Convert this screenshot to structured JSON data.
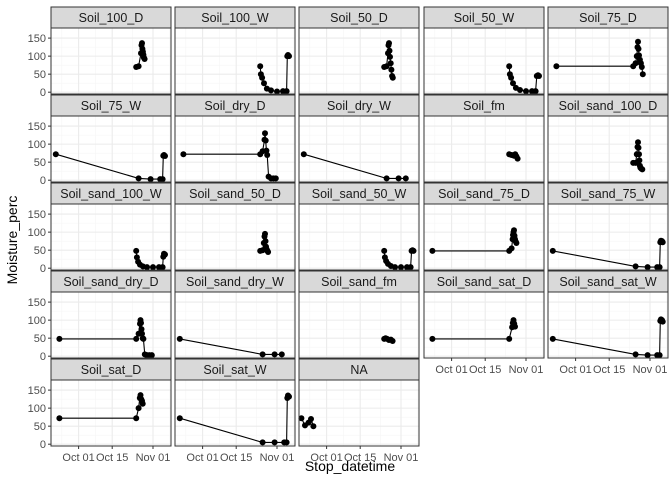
{
  "chart_data": {
    "type": "line",
    "xlabel": "Stop_datetime",
    "ylabel": "Moisture_perc",
    "ylim": [
      -5,
      178
    ],
    "y_ticks": [
      0,
      50,
      100,
      150
    ],
    "x_ticks": [
      "Oct 01",
      "Oct 15",
      "Nov 01"
    ],
    "x_tick_days": [
      0,
      14,
      31
    ],
    "xlim_days": [
      -11.5,
      38.5
    ],
    "grid": true,
    "colors": {
      "panel_bg": "#ffffff",
      "grid_major": "#ebebeb",
      "grid_minor": "#f5f5f5",
      "strip_bg": "#d9d9d9",
      "border": "#333333",
      "series": "#000000"
    },
    "facets": [
      {
        "label": "Soil_100_D",
        "points": [
          [
            24.0,
            70
          ],
          [
            25.0,
            72
          ],
          [
            26.0,
            108
          ],
          [
            26.2,
            130
          ],
          [
            26.4,
            136
          ],
          [
            26.6,
            120
          ],
          [
            26.8,
            112
          ],
          [
            27.0,
            104
          ],
          [
            27.2,
            96
          ],
          [
            27.5,
            92
          ]
        ]
      },
      {
        "label": "Soil_100_W",
        "points": [
          [
            24.0,
            72
          ],
          [
            24.3,
            50
          ],
          [
            24.8,
            40
          ],
          [
            25.6,
            25
          ],
          [
            26.8,
            10
          ],
          [
            28.5,
            5
          ],
          [
            31.0,
            2
          ],
          [
            33.5,
            3
          ],
          [
            35.0,
            3
          ],
          [
            35.3,
            100
          ],
          [
            35.6,
            103
          ],
          [
            36.0,
            100
          ]
        ]
      },
      {
        "label": "Soil_50_D",
        "points": [
          [
            24.0,
            70
          ],
          [
            25.0,
            72
          ],
          [
            25.6,
            108
          ],
          [
            25.8,
            130
          ],
          [
            26.0,
            136
          ],
          [
            26.2,
            115
          ],
          [
            26.4,
            98
          ],
          [
            26.7,
            80
          ],
          [
            27.0,
            62
          ],
          [
            27.3,
            45
          ],
          [
            27.6,
            40
          ]
        ]
      },
      {
        "label": "Soil_50_W",
        "points": [
          [
            24.0,
            72
          ],
          [
            24.3,
            50
          ],
          [
            24.8,
            40
          ],
          [
            25.6,
            25
          ],
          [
            26.8,
            12
          ],
          [
            28.5,
            6
          ],
          [
            31.0,
            3
          ],
          [
            33.5,
            3
          ],
          [
            35.0,
            3
          ],
          [
            35.5,
            45
          ],
          [
            36.0,
            47
          ],
          [
            36.4,
            45
          ]
        ]
      },
      {
        "label": "Soil_75_D",
        "points": [
          [
            -8.0,
            72
          ],
          [
            24.0,
            72
          ],
          [
            25.0,
            80
          ],
          [
            25.5,
            100
          ],
          [
            25.8,
            125
          ],
          [
            26.0,
            140
          ],
          [
            26.2,
            120
          ],
          [
            26.4,
            102
          ],
          [
            26.8,
            90
          ],
          [
            27.2,
            80
          ],
          [
            27.6,
            70
          ],
          [
            28.0,
            50
          ]
        ]
      },
      {
        "label": "Soil_75_W",
        "points": [
          [
            -9.5,
            72
          ],
          [
            25.0,
            5
          ],
          [
            30.0,
            3
          ],
          [
            34.0,
            3
          ],
          [
            35.0,
            3
          ],
          [
            35.3,
            68
          ],
          [
            35.6,
            70
          ],
          [
            36.0,
            67
          ]
        ]
      },
      {
        "label": "Soil_dry_D",
        "points": [
          [
            -8.0,
            72
          ],
          [
            24.0,
            72
          ],
          [
            25.0,
            80
          ],
          [
            25.8,
            112
          ],
          [
            26.0,
            130
          ],
          [
            26.3,
            110
          ],
          [
            26.6,
            82
          ],
          [
            26.9,
            70
          ],
          [
            27.5,
            10
          ],
          [
            28.5,
            5
          ],
          [
            29.5,
            5
          ],
          [
            30.5,
            5
          ]
        ]
      },
      {
        "label": "Soil_dry_W",
        "points": [
          [
            -9.5,
            72
          ],
          [
            25.0,
            5
          ],
          [
            30.0,
            5
          ],
          [
            33.0,
            5
          ]
        ]
      },
      {
        "label": "Soil_fm",
        "points": [
          [
            24.0,
            72
          ],
          [
            25.0,
            70
          ],
          [
            26.0,
            68
          ],
          [
            26.5,
            72
          ],
          [
            27.0,
            66
          ],
          [
            27.5,
            60
          ]
        ]
      },
      {
        "label": "Soil_sand_100_D",
        "points": [
          [
            24.0,
            48
          ],
          [
            25.0,
            48
          ],
          [
            25.5,
            72
          ],
          [
            25.8,
            92
          ],
          [
            26.0,
            105
          ],
          [
            26.2,
            90
          ],
          [
            26.4,
            72
          ],
          [
            26.6,
            55
          ],
          [
            26.8,
            40
          ],
          [
            27.0,
            35
          ],
          [
            27.4,
            32
          ],
          [
            27.8,
            30
          ]
        ]
      },
      {
        "label": "Soil_sand_100_W",
        "points": [
          [
            24.0,
            48
          ],
          [
            24.3,
            30
          ],
          [
            24.8,
            18
          ],
          [
            25.6,
            10
          ],
          [
            26.8,
            5
          ],
          [
            28.5,
            3
          ],
          [
            31.0,
            3
          ],
          [
            33.5,
            3
          ],
          [
            35.0,
            3
          ],
          [
            35.3,
            32
          ],
          [
            35.6,
            40
          ],
          [
            36.0,
            38
          ]
        ]
      },
      {
        "label": "Soil_sand_50_D",
        "points": [
          [
            24.0,
            48
          ],
          [
            25.0,
            50
          ],
          [
            25.5,
            70
          ],
          [
            25.8,
            88
          ],
          [
            26.0,
            95
          ],
          [
            26.2,
            75
          ],
          [
            26.4,
            60
          ],
          [
            26.7,
            52
          ],
          [
            27.0,
            48
          ],
          [
            27.3,
            45
          ]
        ]
      },
      {
        "label": "Soil_sand_50_W",
        "points": [
          [
            24.0,
            48
          ],
          [
            24.3,
            30
          ],
          [
            24.8,
            20
          ],
          [
            25.6,
            12
          ],
          [
            26.8,
            6
          ],
          [
            28.5,
            3
          ],
          [
            31.0,
            3
          ],
          [
            33.5,
            3
          ],
          [
            35.0,
            3
          ],
          [
            35.4,
            48
          ],
          [
            35.8,
            50
          ],
          [
            36.2,
            48
          ]
        ]
      },
      {
        "label": "Soil_sand_75_D",
        "points": [
          [
            -8.0,
            48
          ],
          [
            24.0,
            48
          ],
          [
            25.0,
            55
          ],
          [
            25.4,
            80
          ],
          [
            25.6,
            92
          ],
          [
            25.8,
            100
          ],
          [
            26.0,
            105
          ],
          [
            26.2,
            90
          ],
          [
            26.4,
            80
          ],
          [
            26.7,
            74
          ],
          [
            27.0,
            70
          ]
        ]
      },
      {
        "label": "Soil_sand_75_W",
        "points": [
          [
            -9.5,
            48
          ],
          [
            25.0,
            5
          ],
          [
            30.0,
            3
          ],
          [
            34.0,
            3
          ],
          [
            35.0,
            3
          ],
          [
            35.3,
            72
          ],
          [
            35.6,
            76
          ],
          [
            36.0,
            75
          ],
          [
            36.3,
            72
          ]
        ]
      },
      {
        "label": "Soil_sand_dry_D",
        "points": [
          [
            -8.0,
            48
          ],
          [
            24.0,
            48
          ],
          [
            25.0,
            62
          ],
          [
            25.6,
            90
          ],
          [
            25.8,
            100
          ],
          [
            26.0,
            92
          ],
          [
            26.2,
            75
          ],
          [
            26.4,
            62
          ],
          [
            26.7,
            50
          ],
          [
            27.0,
            48
          ],
          [
            27.6,
            5
          ],
          [
            28.5,
            3
          ],
          [
            29.5,
            3
          ],
          [
            30.5,
            3
          ]
        ]
      },
      {
        "label": "Soil_sand_dry_W",
        "points": [
          [
            -9.5,
            48
          ],
          [
            25.0,
            5
          ],
          [
            30.0,
            5
          ],
          [
            33.0,
            5
          ]
        ]
      },
      {
        "label": "Soil_sand_fm",
        "points": [
          [
            24.0,
            48
          ],
          [
            24.6,
            50
          ],
          [
            25.2,
            48
          ],
          [
            26.0,
            45
          ],
          [
            26.8,
            46
          ],
          [
            27.5,
            42
          ]
        ]
      },
      {
        "label": "Soil_sand_sat_D",
        "points": [
          [
            -8.0,
            48
          ],
          [
            24.0,
            48
          ],
          [
            25.2,
            80
          ],
          [
            25.5,
            92
          ],
          [
            25.8,
            100
          ],
          [
            26.1,
            90
          ],
          [
            26.4,
            82
          ]
        ]
      },
      {
        "label": "Soil_sand_sat_W",
        "points": [
          [
            -9.5,
            48
          ],
          [
            25.0,
            5
          ],
          [
            30.0,
            3
          ],
          [
            34.0,
            3
          ],
          [
            35.0,
            3
          ],
          [
            35.3,
            98
          ],
          [
            35.6,
            102
          ],
          [
            36.0,
            100
          ],
          [
            36.3,
            96
          ]
        ]
      },
      {
        "label": "Soil_sat_D",
        "points": [
          [
            -8.0,
            72
          ],
          [
            24.0,
            72
          ],
          [
            25.0,
            100
          ],
          [
            25.5,
            128
          ],
          [
            25.8,
            136
          ],
          [
            26.1,
            125
          ],
          [
            26.4,
            120
          ],
          [
            26.7,
            112
          ]
        ]
      },
      {
        "label": "Soil_sat_W",
        "points": [
          [
            -9.5,
            72
          ],
          [
            25.0,
            5
          ],
          [
            30.0,
            5
          ],
          [
            34.0,
            5
          ],
          [
            35.0,
            5
          ],
          [
            35.3,
            128
          ],
          [
            35.6,
            135
          ],
          [
            36.0,
            132
          ]
        ]
      },
      {
        "label": "NA",
        "points": [
          [
            -10.5,
            72
          ],
          [
            -9.0,
            52
          ],
          [
            -7.5,
            60
          ],
          [
            -6.5,
            70
          ],
          [
            -5.5,
            50
          ]
        ]
      }
    ]
  }
}
